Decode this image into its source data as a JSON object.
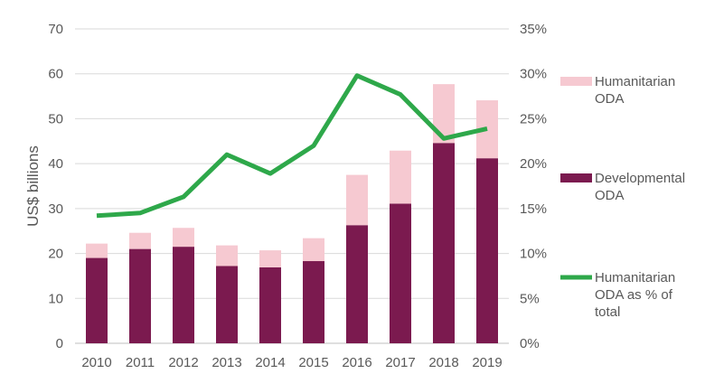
{
  "chart_data": {
    "type": "bar",
    "stacked": true,
    "categories": [
      "2010",
      "2011",
      "2012",
      "2013",
      "2014",
      "2015",
      "2016",
      "2017",
      "2018",
      "2019"
    ],
    "series": [
      {
        "name": "Developmental ODA",
        "kind": "bar",
        "axis": "left",
        "color": "#7b1a4f",
        "values": [
          19.0,
          21.0,
          21.5,
          17.2,
          16.9,
          18.3,
          26.3,
          31.1,
          44.6,
          41.2
        ]
      },
      {
        "name": "Humanitarian ODA",
        "kind": "bar",
        "axis": "left",
        "color": "#f6c9d1",
        "values": [
          3.2,
          3.6,
          4.2,
          4.6,
          3.8,
          5.1,
          11.2,
          11.8,
          13.1,
          12.9
        ]
      },
      {
        "name": "Humanitarian ODA as % of total",
        "kind": "line",
        "axis": "right",
        "color": "#2ea84a",
        "values": [
          14.2,
          14.5,
          16.3,
          21.0,
          18.9,
          22.0,
          29.8,
          27.7,
          22.8,
          23.9
        ]
      }
    ],
    "ylabel": "US$ billions",
    "ylim": [
      0,
      70
    ],
    "yticks": [
      0,
      10,
      20,
      30,
      40,
      50,
      60,
      70
    ],
    "y2lim": [
      0,
      35
    ],
    "y2ticks": [
      "0%",
      "5%",
      "10%",
      "15%",
      "20%",
      "25%",
      "30%",
      "35%"
    ],
    "grid": true,
    "legend_position": "right",
    "legend": [
      {
        "label_lines": [
          "Humanitarian",
          "ODA"
        ],
        "color": "#f6c9d1",
        "kind": "box"
      },
      {
        "label_lines": [
          "Developmental",
          "ODA"
        ],
        "color": "#7b1a4f",
        "kind": "box"
      },
      {
        "label_lines": [
          "Humanitarian",
          "ODA as % of",
          "total"
        ],
        "color": "#2ea84a",
        "kind": "line"
      }
    ]
  }
}
